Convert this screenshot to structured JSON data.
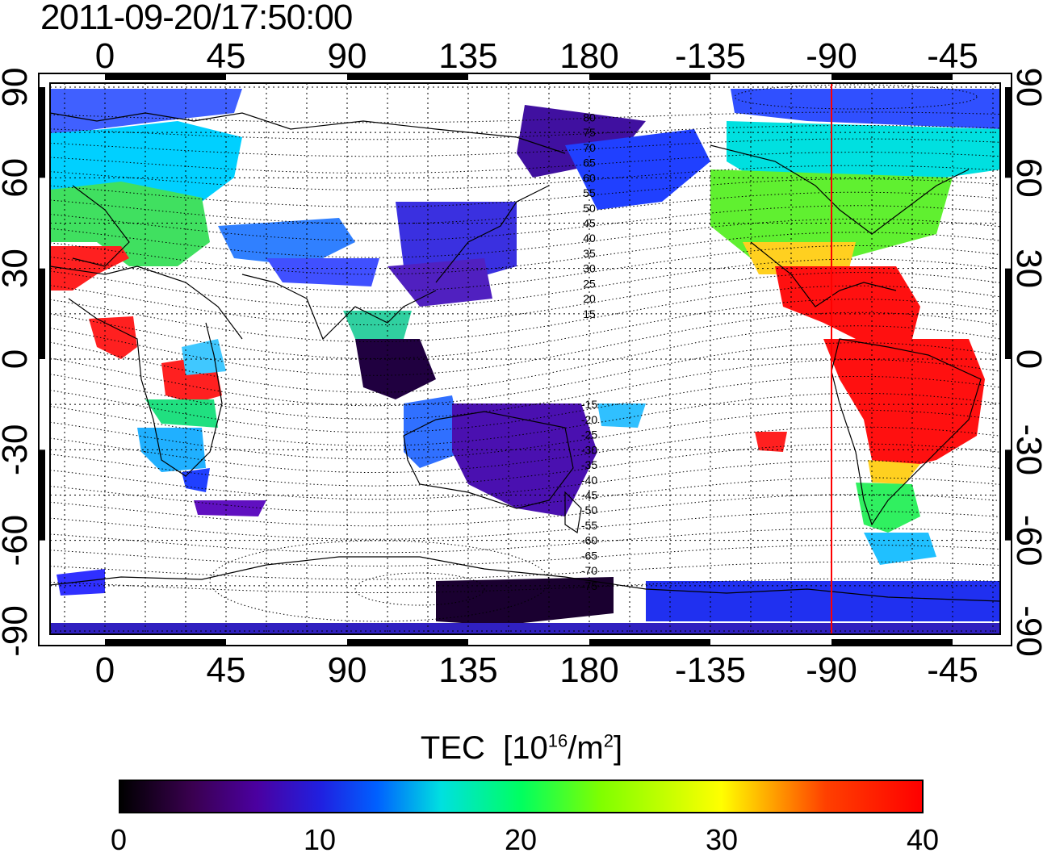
{
  "title": "2011-09-20/17:50:00",
  "map": {
    "top_lon_labels": [
      "0",
      "45",
      "90",
      "135",
      "180",
      "-135",
      "-90",
      "-45"
    ],
    "bottom_lon_labels": [
      "0",
      "45",
      "90",
      "135",
      "180",
      "-135",
      "-90",
      "-45"
    ],
    "lat_labels": [
      "90",
      "60",
      "30",
      "0",
      "-30",
      "-60",
      "-90"
    ],
    "contour_labels": [
      "80",
      "75",
      "70",
      "65",
      "60",
      "55",
      "50",
      "45",
      "40",
      "35",
      "30",
      "25",
      "20",
      "15",
      "-15",
      "-20",
      "-25",
      "-30",
      "-35",
      "-40",
      "-45",
      "-50",
      "-55",
      "-60",
      "-65",
      "-70",
      "-75"
    ],
    "marker_longitude": -90,
    "marker_color": "#ff0000"
  },
  "colorbar": {
    "title_prefix": "TEC",
    "title_units": "[10",
    "title_exp1": "16",
    "title_mid": "/m",
    "title_exp2": "2",
    "title_end": "]",
    "ticks": [
      "0",
      "10",
      "20",
      "30",
      "40"
    ],
    "min": 0,
    "max": 40,
    "colors": [
      "#000000",
      "#4b00a0",
      "#0000ff",
      "#00ffff",
      "#00ff00",
      "#ffff00",
      "#ff0000"
    ]
  }
}
